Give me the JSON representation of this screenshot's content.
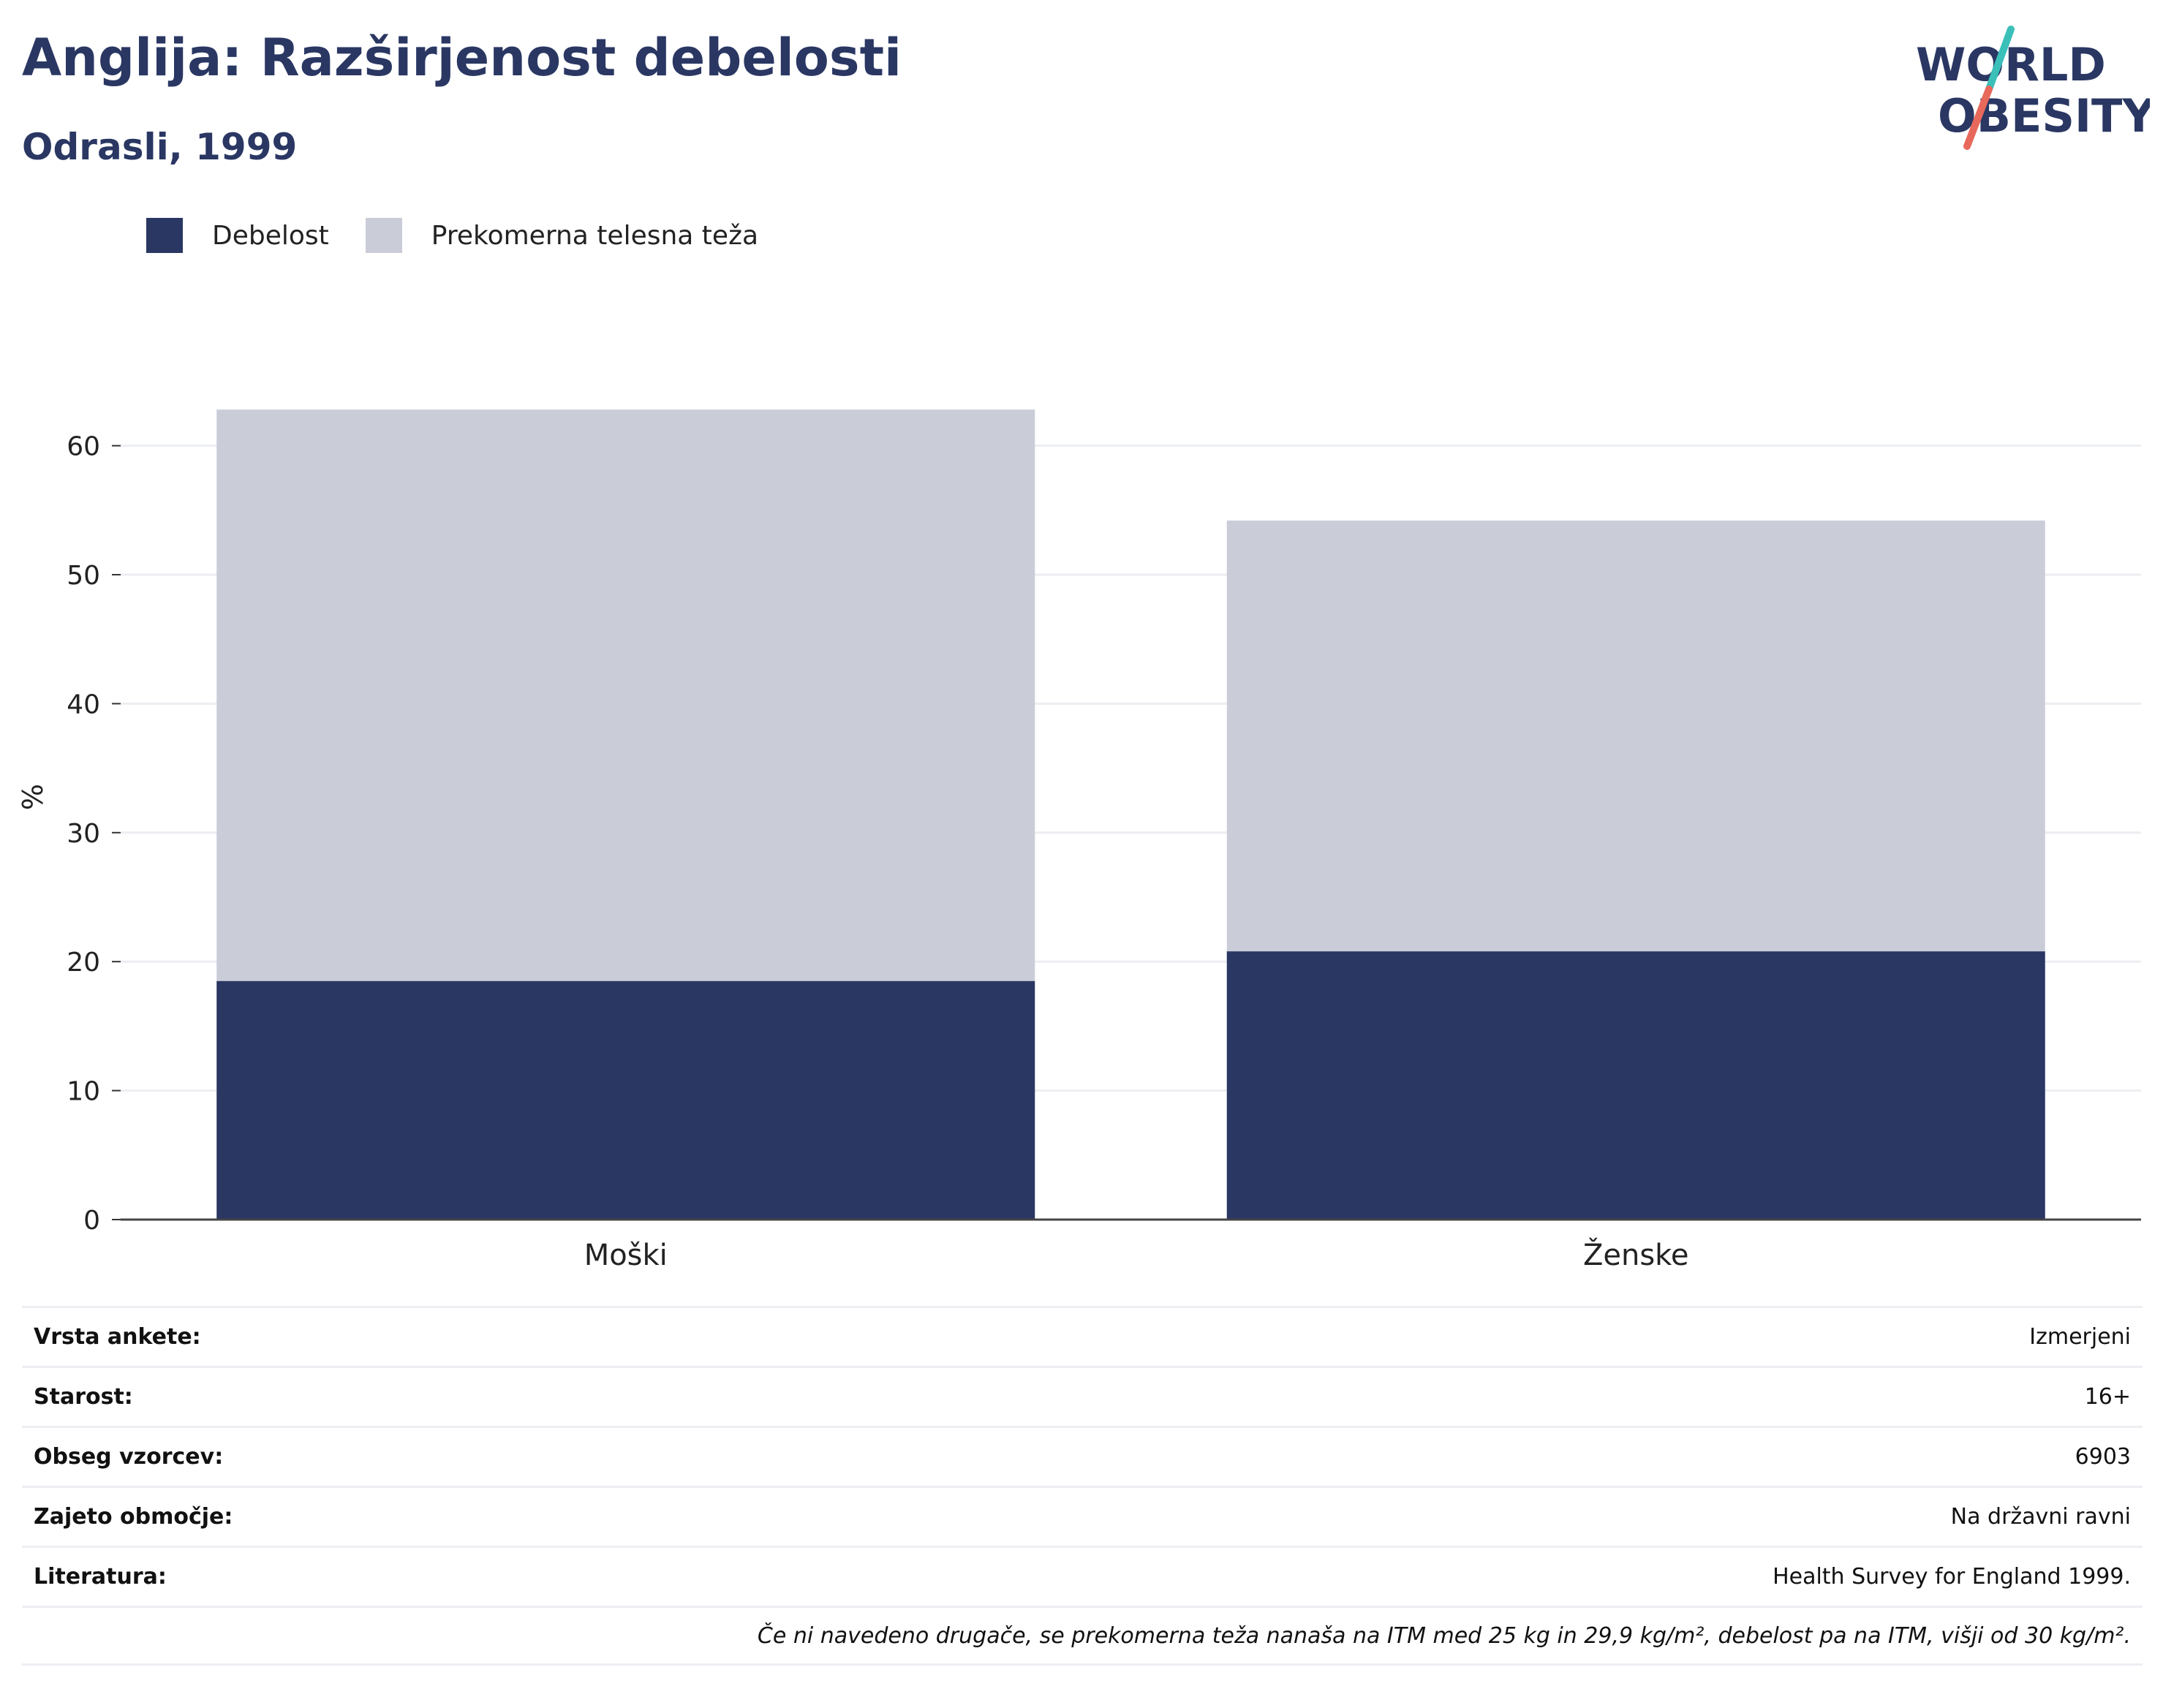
{
  "header": {
    "title": "Anglija: Razširjenost debelosti",
    "subtitle": "Odrasli, 1999"
  },
  "logo": {
    "line1": "WORLD",
    "line2": "OBESITY",
    "icon": "world-obesity-logo"
  },
  "colors": {
    "obesity": "#2a3763",
    "overweight": "#cacdd8",
    "text": "#2a3763",
    "logo_teal": "#3bbfb9",
    "logo_coral": "#e8685c"
  },
  "legend": [
    {
      "label": "Debelost",
      "color": "#2a3763"
    },
    {
      "label": "Prekomerna telesna teža",
      "color": "#cacdd8"
    }
  ],
  "chart_data": {
    "type": "bar",
    "stacked": true,
    "categories": [
      "Moški",
      "Ženske"
    ],
    "series": [
      {
        "name": "Debelost",
        "values": [
          18.5,
          20.8
        ]
      },
      {
        "name": "Prekomerna telesna teža",
        "values": [
          44.3,
          33.4
        ]
      }
    ],
    "ylabel": "%",
    "ylim": [
      0,
      65
    ],
    "yticks": [
      0,
      10,
      20,
      30,
      40,
      50,
      60
    ],
    "grid": true,
    "legend_position": "top-left"
  },
  "info": {
    "rows": [
      {
        "label": "Vrsta ankete:",
        "value": "Izmerjeni"
      },
      {
        "label": "Starost:",
        "value": "16+"
      },
      {
        "label": "Obseg vzorcev:",
        "value": "6903"
      },
      {
        "label": "Zajeto območje:",
        "value": "Na državni ravni"
      },
      {
        "label": "Literatura:",
        "value": "Health Survey for England 1999."
      }
    ],
    "note": "Če ni navedeno drugače, se prekomerna teža nanaša na ITM med 25 kg in 29,9 kg/m², debelost pa na ITM, višji od 30 kg/m²."
  }
}
